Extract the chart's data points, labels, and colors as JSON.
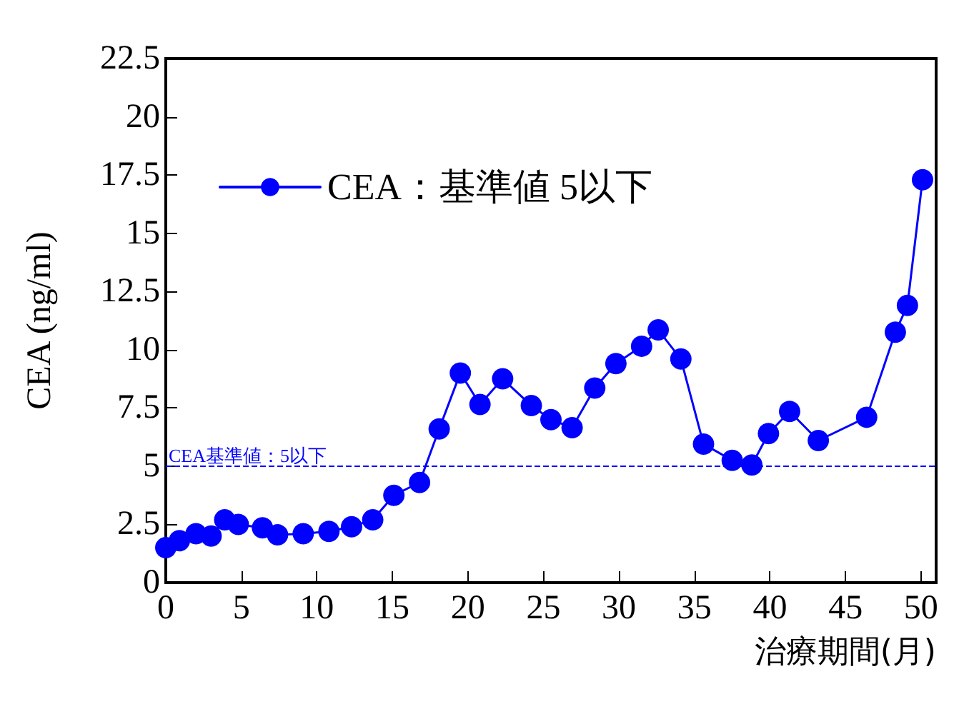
{
  "chart_data": {
    "type": "line",
    "xlabel": "治療期間(月)",
    "ylabel": "CEA (ng/ml)",
    "x": [
      0,
      0.9,
      2.0,
      3.0,
      3.9,
      4.8,
      6.4,
      7.4,
      9.1,
      10.8,
      12.3,
      13.7,
      15.1,
      16.8,
      18.1,
      19.5,
      20.8,
      22.3,
      24.2,
      25.5,
      26.9,
      28.4,
      29.8,
      31.5,
      32.6,
      34.1,
      35.6,
      37.5,
      38.8,
      39.9,
      41.3,
      43.2,
      46.4,
      48.3,
      49.1,
      50.1
    ],
    "series": [
      {
        "name": "CEA：基準値 5以下",
        "color": "#0000ff",
        "values": [
          1.5,
          1.8,
          2.1,
          2.0,
          2.7,
          2.5,
          2.35,
          2.05,
          2.1,
          2.2,
          2.4,
          2.7,
          3.75,
          4.3,
          6.6,
          9.0,
          7.65,
          8.75,
          7.6,
          7.0,
          6.65,
          8.35,
          9.4,
          10.15,
          10.85,
          9.6,
          5.95,
          5.25,
          5.05,
          6.4,
          7.35,
          6.1,
          7.1,
          10.75,
          11.9,
          17.3
        ]
      }
    ],
    "xlim": [
      0,
      51
    ],
    "xticks": [
      0,
      5,
      10,
      15,
      20,
      25,
      30,
      35,
      40,
      45,
      50
    ],
    "ylim": [
      0,
      22.5
    ],
    "yticks": [
      0,
      2.5,
      5,
      7.5,
      10,
      12.5,
      15,
      17.5,
      20,
      22.5
    ],
    "ref_lines": [
      {
        "axis": "y",
        "value": 5,
        "label": "CEA基準値：5以下",
        "color": "#0000ff",
        "line_style": "dashed"
      }
    ],
    "grid": false,
    "legend": "top left",
    "marker": "circle",
    "line_style": "solid"
  }
}
